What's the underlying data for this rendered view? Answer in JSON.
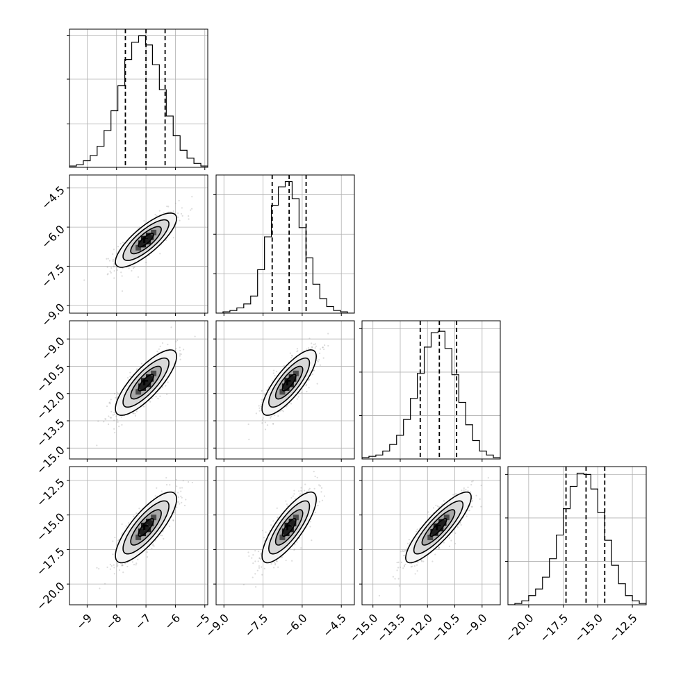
{
  "chart_data": {
    "type": "corner",
    "title": "",
    "parameters": [
      {
        "range": [
          -9.6,
          -4.9
        ],
        "ticks": [
          -9,
          -8,
          -7,
          -6,
          -5
        ],
        "tick_labels": [
          "−9",
          "−8",
          "−7",
          "−6",
          "−5"
        ],
        "mean": -7.0,
        "sigma": 0.52,
        "quantiles": [
          -7.7,
          -7.0,
          -6.35
        ]
      },
      {
        "range": [
          -9.3,
          -4.0
        ],
        "ticks": [
          -9.0,
          -7.5,
          -6.0,
          -4.5
        ],
        "tick_labels": [
          "−9.0",
          "−7.5",
          "−6.0",
          "−4.5"
        ],
        "mean": -6.5,
        "sigma": 0.52,
        "quantiles": [
          -7.15,
          -6.5,
          -5.85
        ]
      },
      {
        "range": [
          -15.6,
          -8.0
        ],
        "ticks": [
          -15.0,
          -13.5,
          -12.0,
          -10.5,
          -9.0
        ],
        "tick_labels": [
          "−15.0",
          "−13.5",
          "−12.0",
          "−10.5",
          "−9.0"
        ],
        "mean": -11.4,
        "sigma": 0.9,
        "quantiles": [
          -12.4,
          -11.35,
          -10.4
        ]
      },
      {
        "range": [
          -21.5,
          -11.5
        ],
        "ticks": [
          -20.0,
          -17.5,
          -15.0,
          -12.5
        ],
        "tick_labels": [
          "−20.0",
          "−17.5",
          "−15.0",
          "−12.5"
        ],
        "mean": -15.9,
        "sigma": 1.28,
        "quantiles": [
          -17.3,
          -15.85,
          -14.5
        ]
      }
    ],
    "histograms": [
      {
        "param": 0,
        "bins": 20,
        "ylim": [
          0,
          1.05
        ],
        "yticks": [
          0.33,
          0.67,
          1.0
        ],
        "heights": [
          0.01,
          0.02,
          0.05,
          0.09,
          0.16,
          0.28,
          0.43,
          0.62,
          0.82,
          0.95,
          1.0,
          0.93,
          0.78,
          0.59,
          0.39,
          0.24,
          0.13,
          0.07,
          0.03,
          0.01
        ]
      },
      {
        "param": 1,
        "bins": 20,
        "ylim": [
          0,
          1.05
        ],
        "yticks": [
          0.3,
          0.6,
          0.9
        ],
        "heights": [
          0.0,
          0.01,
          0.02,
          0.04,
          0.07,
          0.13,
          0.33,
          0.58,
          0.82,
          0.96,
          1.0,
          0.87,
          0.65,
          0.42,
          0.22,
          0.11,
          0.05,
          0.02,
          0.01,
          0.0
        ]
      },
      {
        "param": 2,
        "bins": 20,
        "ylim": [
          0,
          1.05
        ],
        "yticks": [
          0.33,
          0.66,
          0.99
        ],
        "heights": [
          0.01,
          0.02,
          0.03,
          0.06,
          0.11,
          0.18,
          0.3,
          0.46,
          0.65,
          0.85,
          0.96,
          0.97,
          0.84,
          0.64,
          0.43,
          0.26,
          0.14,
          0.06,
          0.03,
          0.01
        ]
      },
      {
        "param": 3,
        "bins": 20,
        "ylim": [
          0,
          1.05
        ],
        "yticks": [
          0.33,
          0.66,
          0.99
        ],
        "heights": [
          0.0,
          0.01,
          0.03,
          0.07,
          0.12,
          0.21,
          0.35,
          0.53,
          0.73,
          0.9,
          1.0,
          0.99,
          0.88,
          0.7,
          0.49,
          0.3,
          0.16,
          0.07,
          0.03,
          0.01
        ]
      }
    ],
    "correlations": [
      {
        "x": 0,
        "y": 1,
        "rho": 0.8
      },
      {
        "x": 0,
        "y": 2,
        "rho": 0.8
      },
      {
        "x": 1,
        "y": 2,
        "rho": 0.8
      },
      {
        "x": 0,
        "y": 3,
        "rho": 0.8
      },
      {
        "x": 1,
        "y": 3,
        "rho": 0.8
      },
      {
        "x": 2,
        "y": 3,
        "rho": 0.86
      }
    ],
    "contour_levels_sigma": [
      0.5,
      1.0,
      1.5,
      2.0
    ],
    "grid": true,
    "colors": {
      "line": "#000000",
      "grid": "#b0b0b0",
      "points": "#9a9a9a",
      "density_dark": "#000000",
      "density_light": "#ffffff"
    }
  }
}
